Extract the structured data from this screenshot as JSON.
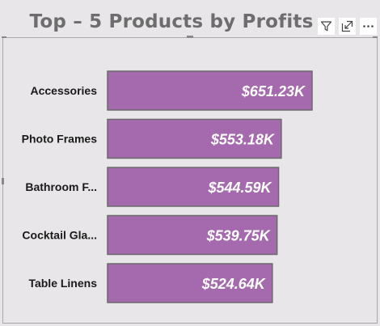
{
  "header": {
    "title": "Top – 5 Products by Profits",
    "icons": [
      "filter-icon",
      "focus-mode-icon",
      "more-options-icon"
    ]
  },
  "colors": {
    "bar_fill": "#a56aad",
    "bar_stroke": "#6a6a6a",
    "label_text": "#1a1a1a",
    "value_text": "#ffffff",
    "background": "#e8e6e8",
    "title_text": "#6e6d6e"
  },
  "chart_data": {
    "type": "bar",
    "orientation": "horizontal",
    "title": "Top – 5 Products by Profits",
    "categories": [
      "Accessories",
      "Photo Frames",
      "Bathroom F...",
      "Cocktail Gla...",
      "Table Linens"
    ],
    "values": [
      651.23,
      553.18,
      544.59,
      539.75,
      524.64
    ],
    "value_labels": [
      "$651.23K",
      "$553.18K",
      "$544.59K",
      "$539.75K",
      "$524.64K"
    ],
    "unit": "K",
    "xlim": [
      0,
      651.23
    ],
    "grid": false,
    "legend": "none"
  }
}
